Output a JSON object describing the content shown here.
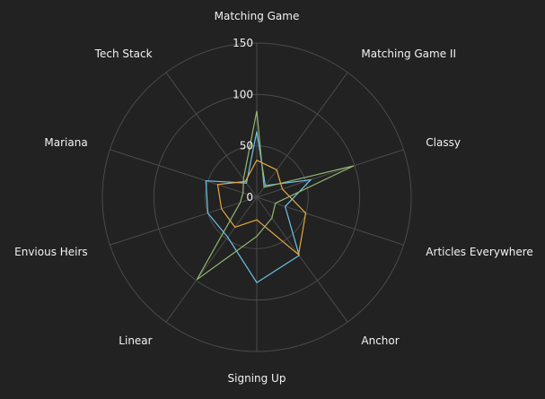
{
  "chart_data": {
    "type": "radar",
    "title": "",
    "categories": [
      "Matching Game",
      "Matching Game II",
      "Classy",
      "Articles Everywhere",
      "Anchor",
      "Signing Up",
      "Linear",
      "Envious Heirs",
      "Mariana",
      "Tech Stack"
    ],
    "radial_ticks": [
      "0",
      "50",
      "100",
      "150"
    ],
    "rlim": [
      0,
      150
    ],
    "grid": true,
    "legend": false,
    "series": [
      {
        "color": "#6ec3e8",
        "values": [
          64,
          14,
          55,
          29,
          70,
          83,
          48,
          50,
          52,
          17
        ]
      },
      {
        "color": "#e6a640",
        "values": [
          36,
          33,
          26,
          50,
          69,
          22,
          36,
          36,
          40,
          19
        ]
      },
      {
        "color": "#93b772",
        "values": [
          84,
          12,
          99,
          19,
          25,
          38,
          99,
          17,
          14,
          22
        ]
      }
    ]
  }
}
